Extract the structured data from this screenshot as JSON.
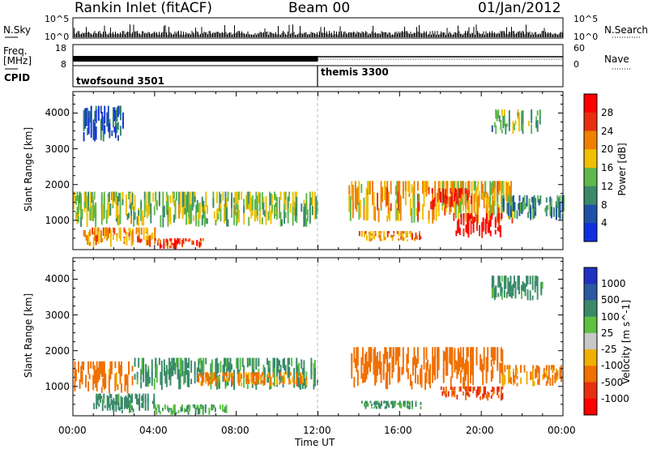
{
  "header": {
    "station": "Rankin Inlet (fitACF)",
    "beam": "Beam 00",
    "date": "01/Jan/2012"
  },
  "strip": {
    "nsky_label": "N.Sky",
    "nsearch_label": "N.Search",
    "freq_label_1": "Freq.",
    "freq_label_2": "[MHz]",
    "nave_label": "Nave",
    "cpid_label": "CPID",
    "noise_ticks": [
      "10^5",
      "10^0"
    ],
    "freq_ticks": [
      "18",
      "8"
    ],
    "nave_ticks": [
      "60",
      "0"
    ],
    "cpid_segments": [
      {
        "name": "twofsound 3501",
        "start_hour": 0,
        "end_hour": 12
      },
      {
        "name": "themis 3300",
        "start_hour": 12,
        "end_hour": 24
      }
    ]
  },
  "axes": {
    "ylabel": "Slant Range [km]",
    "xlabel": "Time UT",
    "xticks": [
      "00:00",
      "04:00",
      "08:00",
      "12:00",
      "16:00",
      "20:00",
      "00:00"
    ],
    "yticks": [
      "1000",
      "2000",
      "3000",
      "4000"
    ]
  },
  "power_colorbar": {
    "label": "Power [dB]",
    "ticks": [
      "4",
      "8",
      "12",
      "16",
      "20",
      "24",
      "28"
    ],
    "colors": [
      "#1030e0",
      "#2050a8",
      "#3a8a6a",
      "#5fb84a",
      "#f0c000",
      "#f08000",
      "#e83010",
      "#ff0000"
    ]
  },
  "velocity_colorbar": {
    "label": "Velocity [m s^-1]",
    "ticks": [
      "1000",
      "500",
      "100",
      "25",
      "-25",
      "-100",
      "-500",
      "-1000"
    ],
    "colors": [
      "#2030c0",
      "#2a5aa0",
      "#3a8a6a",
      "#5cc040",
      "#c8c8c8",
      "#f0b000",
      "#f07000",
      "#e83010",
      "#ff0000"
    ]
  },
  "chart_data": [
    {
      "type": "heatmap",
      "title": "Power",
      "xlabel": "Time UT",
      "ylabel": "Slant Range [km]",
      "xlim": [
        0,
        24
      ],
      "ylim": [
        180,
        4600
      ],
      "colorbar_label": "Power [dB]",
      "colorbar_range": [
        0,
        30
      ],
      "regions": [
        {
          "t0": 0.0,
          "t1": 12.0,
          "r0": 800,
          "r1": 1800,
          "value": 14
        },
        {
          "t0": 0.5,
          "t1": 4.0,
          "r0": 250,
          "r1": 800,
          "value": 20
        },
        {
          "t0": 4.0,
          "t1": 6.5,
          "r0": 200,
          "r1": 500,
          "value": 24
        },
        {
          "t0": 13.5,
          "t1": 21.5,
          "r0": 900,
          "r1": 2100,
          "value": 18
        },
        {
          "t0": 17.5,
          "t1": 19.5,
          "r0": 1300,
          "r1": 1900,
          "value": 26
        },
        {
          "t0": 18.5,
          "t1": 21.0,
          "r0": 500,
          "r1": 1200,
          "value": 28
        },
        {
          "t0": 14.0,
          "t1": 17.0,
          "r0": 400,
          "r1": 700,
          "value": 20
        },
        {
          "t0": 21.0,
          "t1": 24.0,
          "r0": 1000,
          "r1": 1700,
          "value": 10
        },
        {
          "t0": 20.5,
          "t1": 23.0,
          "r0": 3400,
          "r1": 4100,
          "value": 12
        },
        {
          "t0": 0.5,
          "t1": 2.5,
          "r0": 3200,
          "r1": 4200,
          "value": 6
        }
      ]
    },
    {
      "type": "heatmap",
      "title": "Velocity",
      "xlabel": "Time UT",
      "ylabel": "Slant Range [km]",
      "xlim": [
        0,
        24
      ],
      "ylim": [
        180,
        4600
      ],
      "colorbar_label": "Velocity [m s^-1]",
      "colorbar_range": [
        -1000,
        1000
      ],
      "regions": [
        {
          "t0": 0.0,
          "t1": 3.0,
          "r0": 800,
          "r1": 1700,
          "value": -200
        },
        {
          "t0": 3.0,
          "t1": 12.0,
          "r0": 900,
          "r1": 1800,
          "value": 150
        },
        {
          "t0": 6.0,
          "t1": 11.5,
          "r0": 1000,
          "r1": 1400,
          "value": -150
        },
        {
          "t0": 1.0,
          "t1": 4.0,
          "r0": 250,
          "r1": 800,
          "value": 200
        },
        {
          "t0": 4.0,
          "t1": 7.5,
          "r0": 200,
          "r1": 500,
          "value": 120
        },
        {
          "t0": 13.5,
          "t1": 21.0,
          "r0": 900,
          "r1": 2100,
          "value": -300
        },
        {
          "t0": 18.0,
          "t1": 21.0,
          "r0": 600,
          "r1": 1000,
          "value": -600
        },
        {
          "t0": 14.0,
          "t1": 17.0,
          "r0": 350,
          "r1": 600,
          "value": 150
        },
        {
          "t0": 21.0,
          "t1": 24.0,
          "r0": 1000,
          "r1": 1600,
          "value": -150
        },
        {
          "t0": 20.5,
          "t1": 23.0,
          "r0": 3400,
          "r1": 4100,
          "value": 200
        }
      ]
    }
  ]
}
